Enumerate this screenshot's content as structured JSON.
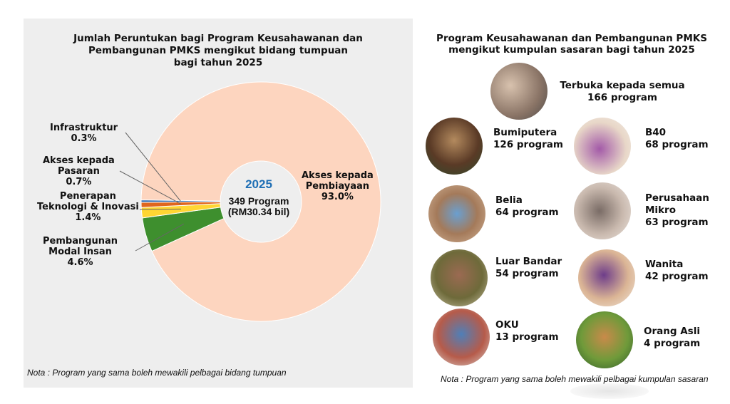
{
  "left": {
    "title_lines": [
      "Jumlah Peruntukan bagi Program Keusahawanan dan",
      "Pembangunan PMKS mengikut bidang tumpuan",
      "bagi tahun 2025"
    ],
    "center_year": "2025",
    "center_programs": "349 Program",
    "center_amount": "(RM30.34 bil)",
    "note": "Nota : Program yang sama boleh mewakili pelbagai bidang tumpuan"
  },
  "chart_data": {
    "type": "pie",
    "donut": true,
    "categories": [
      "Akses kepada Pembiayaan",
      "Pembangunan Modal Insan",
      "Penerapan Teknologi & Inovasi",
      "Akses kepada Pasaran",
      "Infrastruktur"
    ],
    "values": [
      93.0,
      4.6,
      1.4,
      0.7,
      0.3
    ],
    "value_labels": [
      "93.0%",
      "4.6%",
      "1.4%",
      "0.7%",
      "0.3%"
    ],
    "label_lines": [
      [
        "Akses kepada",
        "Pembiayaan"
      ],
      [
        "Pembangunan",
        "Modal Insan"
      ],
      [
        "Penerapan",
        "Teknologi & Inovasi"
      ],
      [
        "Akses kepada",
        "Pasaran"
      ],
      [
        "Infrastruktur"
      ]
    ],
    "colors": [
      "#fdd5bf",
      "#3e8f2e",
      "#ffd633",
      "#e0661e",
      "#2f6ab0"
    ]
  },
  "right": {
    "title_lines": [
      "Program Keusahawanan dan Pembangunan PMKS",
      "mengikut kumpulan sasaran bagi tahun 2025"
    ],
    "groups": [
      {
        "name": "Terbuka kepada semua",
        "count": "166 program"
      },
      {
        "name": "Bumiputera",
        "count": "126 program"
      },
      {
        "name": "B40",
        "count": "68 program"
      },
      {
        "name": "Belia",
        "count": "64 program"
      },
      {
        "name": "Perusahaan",
        "name2": "Mikro",
        "count": "63 program"
      },
      {
        "name": "Luar Bandar",
        "count": "54 program"
      },
      {
        "name": "Wanita",
        "count": "42 program"
      },
      {
        "name": "OKU",
        "count": "13 program"
      },
      {
        "name": "Orang Asli",
        "count": "4 program"
      }
    ],
    "note": "Nota : Program yang sama boleh mewakili pelbagai kumpulan sasaran"
  }
}
